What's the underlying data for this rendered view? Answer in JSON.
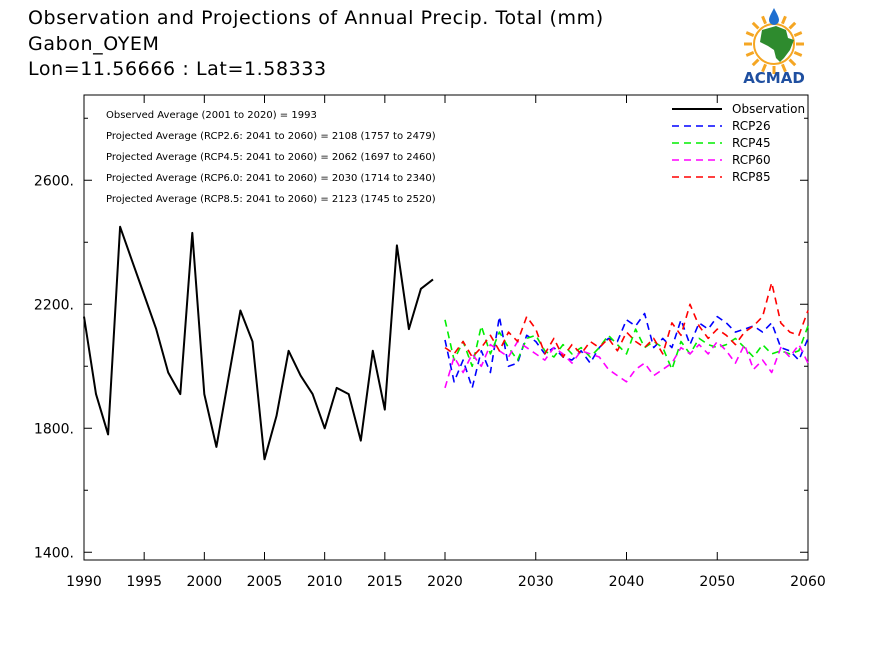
{
  "header": {
    "title": "Observation and Projections of Annual Precip. Total (mm)",
    "location": "Gabon_OYEM",
    "coords": "Lon=11.56666 : Lat=1.58333"
  },
  "logo": {
    "text": "ACMAD",
    "colors": {
      "text": "#1f4fa0",
      "africa": "#2e8b2e",
      "sun": "#f5a623",
      "drop": "#1f6fd0"
    }
  },
  "stats": [
    "Observed Average (2001 to 2020) = 1993",
    "Projected Average (RCP2.6: 2041 to 2060) = 2108 (1757 to 2479)",
    "Projected Average (RCP4.5: 2041 to 2060) = 2062 (1697 to 2460)",
    "Projected Average (RCP6.0: 2041 to 2060) = 2030 (1714 to 2340)",
    "Projected Average (RCP8.5: 2041 to 2060) = 2123 (1745 to 2520)"
  ],
  "chart_data": {
    "type": "line",
    "title": "Observation and Projections of Annual Precip. Total (mm)",
    "xlabel": "",
    "ylabel": "",
    "xlim": [
      1990,
      2060
    ],
    "ylim": [
      1375,
      2875
    ],
    "y_ticks": [
      "1400.",
      "1800.",
      "2200.",
      "2600."
    ],
    "y_tick_values": [
      1400,
      1800,
      2200,
      2600
    ],
    "x_ticks_obs": [
      1990,
      1995,
      2000,
      2005,
      2010,
      2015,
      2020
    ],
    "x_ticks_proj": [
      2030,
      2040,
      2050,
      2060
    ],
    "legend_position": "top-right",
    "series": [
      {
        "name": "Observation",
        "color": "#000000",
        "dash": false,
        "x": [
          1990,
          1991,
          1992,
          1993,
          1994,
          1995,
          1996,
          1997,
          1998,
          1999,
          2000,
          2001,
          2002,
          2003,
          2004,
          2005,
          2006,
          2007,
          2008,
          2009,
          2010,
          2011,
          2012,
          2013,
          2014,
          2015,
          2016,
          2017,
          2018,
          2019
        ],
        "y": [
          2160,
          1910,
          1780,
          2450,
          2340,
          2230,
          2120,
          1980,
          1910,
          2430,
          1910,
          1740,
          1960,
          2180,
          2080,
          1700,
          1840,
          2050,
          1970,
          1910,
          1800,
          1930,
          1910,
          1760,
          2050,
          1860,
          2390,
          2120,
          2250,
          2280
        ]
      },
      {
        "name": "RCP26",
        "color": "#0000ff",
        "dash": true,
        "x": [
          2020,
          2021,
          2022,
          2023,
          2024,
          2025,
          2026,
          2027,
          2028,
          2029,
          2030,
          2031,
          2032,
          2033,
          2034,
          2035,
          2036,
          2037,
          2038,
          2039,
          2040,
          2041,
          2042,
          2043,
          2044,
          2045,
          2046,
          2047,
          2048,
          2049,
          2050,
          2051,
          2052,
          2053,
          2054,
          2055,
          2056,
          2057,
          2058,
          2059,
          2060
        ],
        "y": [
          2085,
          1950,
          2020,
          1930,
          2050,
          1980,
          2160,
          2000,
          2010,
          2100,
          2080,
          2040,
          2060,
          2030,
          2020,
          2050,
          2010,
          2060,
          2090,
          2080,
          2150,
          2130,
          2170,
          2060,
          2090,
          2060,
          2150,
          2070,
          2140,
          2120,
          2160,
          2140,
          2110,
          2120,
          2130,
          2110,
          2140,
          2060,
          2050,
          2020,
          2090
        ]
      },
      {
        "name": "RCP45",
        "color": "#00ee00",
        "dash": true,
        "x": [
          2020,
          2021,
          2022,
          2023,
          2024,
          2025,
          2026,
          2027,
          2028,
          2029,
          2030,
          2031,
          2032,
          2033,
          2034,
          2035,
          2036,
          2037,
          2038,
          2039,
          2040,
          2041,
          2042,
          2043,
          2044,
          2045,
          2046,
          2047,
          2048,
          2049,
          2050,
          2051,
          2052,
          2053,
          2054,
          2055,
          2056,
          2057,
          2058,
          2059,
          2060
        ],
        "y": [
          2150,
          2020,
          2080,
          2000,
          2130,
          2040,
          2110,
          2060,
          2020,
          2090,
          2100,
          2050,
          2030,
          2070,
          2040,
          2060,
          2030,
          2060,
          2100,
          2070,
          2040,
          2120,
          2060,
          2080,
          2060,
          1990,
          2080,
          2040,
          2090,
          2070,
          2060,
          2070,
          2090,
          2060,
          2030,
          2070,
          2040,
          2050,
          2040,
          2050,
          2130
        ]
      },
      {
        "name": "RCP60",
        "color": "#ff00ff",
        "dash": true,
        "x": [
          2020,
          2021,
          2022,
          2023,
          2024,
          2025,
          2026,
          2027,
          2028,
          2029,
          2030,
          2031,
          2032,
          2033,
          2034,
          2035,
          2036,
          2037,
          2038,
          2039,
          2040,
          2041,
          2042,
          2043,
          2044,
          2045,
          2046,
          2047,
          2048,
          2049,
          2050,
          2051,
          2052,
          2053,
          2054,
          2055,
          2056,
          2057,
          2058,
          2059,
          2060
        ],
        "y": [
          1930,
          2030,
          1980,
          2040,
          2000,
          2070,
          2050,
          2030,
          2080,
          2060,
          2040,
          2020,
          2060,
          2040,
          2010,
          2050,
          2040,
          2030,
          1990,
          1970,
          1950,
          1990,
          2010,
          1970,
          1990,
          2010,
          2060,
          2040,
          2070,
          2040,
          2080,
          2050,
          2010,
          2070,
          1990,
          2020,
          1980,
          2060,
          2030,
          2070,
          2010
        ]
      },
      {
        "name": "RCP85",
        "color": "#ff0000",
        "dash": true,
        "x": [
          2020,
          2021,
          2022,
          2023,
          2024,
          2025,
          2026,
          2027,
          2028,
          2029,
          2030,
          2031,
          2032,
          2033,
          2034,
          2035,
          2036,
          2037,
          2038,
          2039,
          2040,
          2041,
          2042,
          2043,
          2044,
          2045,
          2046,
          2047,
          2048,
          2049,
          2050,
          2051,
          2052,
          2053,
          2054,
          2055,
          2056,
          2057,
          2058,
          2059,
          2060
        ],
        "y": [
          2060,
          2040,
          2080,
          2030,
          2060,
          2100,
          2050,
          2110,
          2080,
          2160,
          2120,
          2040,
          2090,
          2030,
          2070,
          2040,
          2080,
          2060,
          2090,
          2050,
          2110,
          2080,
          2060,
          2090,
          2040,
          2140,
          2100,
          2200,
          2130,
          2090,
          2120,
          2100,
          2070,
          2110,
          2130,
          2160,
          2270,
          2140,
          2110,
          2100,
          2180
        ]
      }
    ]
  }
}
